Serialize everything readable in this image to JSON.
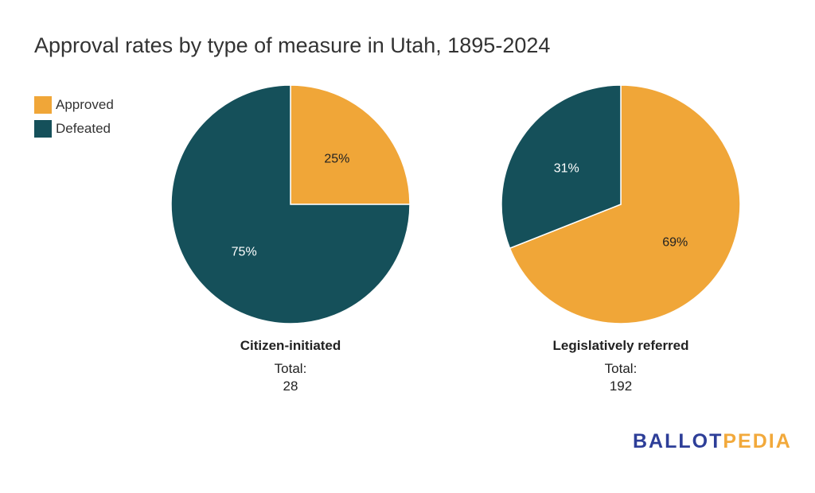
{
  "title": "Approval rates by type of measure in Utah, 1895-2024",
  "legend": [
    {
      "label": "Approved",
      "color": "#f0a638"
    },
    {
      "label": "Defeated",
      "color": "#15505a"
    }
  ],
  "chart_data": [
    {
      "type": "pie",
      "name": "Citizen-initiated",
      "total_label": "Total:",
      "total": "28",
      "slices": [
        {
          "label": "Approved",
          "value": 25,
          "text": "25%",
          "color": "#f0a638",
          "text_color": "#222222"
        },
        {
          "label": "Defeated",
          "value": 75,
          "text": "75%",
          "color": "#15505a",
          "text_color": "#ffffff"
        }
      ]
    },
    {
      "type": "pie",
      "name": "Legislatively referred",
      "total_label": "Total:",
      "total": "192",
      "slices": [
        {
          "label": "Approved",
          "value": 69,
          "text": "69%",
          "color": "#f0a638",
          "text_color": "#222222"
        },
        {
          "label": "Defeated",
          "value": 31,
          "text": "31%",
          "color": "#15505a",
          "text_color": "#ffffff"
        }
      ]
    }
  ],
  "logo": {
    "part1": "BALLOT",
    "part2": "PEDIA"
  }
}
